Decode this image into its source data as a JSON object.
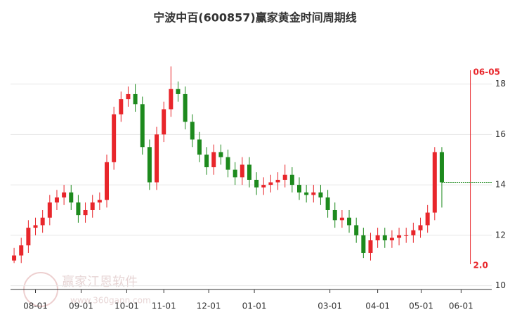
{
  "chart_data": {
    "type": "candlestick",
    "title": "宁波中百(600857)赢家黄金时间周期线",
    "x": [
      0,
      1,
      2,
      3,
      4,
      5,
      6,
      7,
      8,
      9,
      10,
      11,
      12,
      13,
      14,
      15,
      16,
      17,
      18,
      19,
      20,
      21,
      22,
      23,
      24,
      25,
      26,
      27,
      28,
      29,
      30,
      31,
      32,
      33,
      34,
      35,
      36,
      37,
      38,
      39,
      40,
      41,
      42,
      43,
      44,
      45,
      46,
      47,
      48,
      49,
      50,
      51,
      52,
      53,
      54,
      55,
      56,
      57,
      58,
      59,
      60
    ],
    "open": [
      11.0,
      11.2,
      11.6,
      12.3,
      12.4,
      12.7,
      13.3,
      13.5,
      13.7,
      13.3,
      12.8,
      13.0,
      13.3,
      13.4,
      14.9,
      16.8,
      17.4,
      17.6,
      17.2,
      15.5,
      14.1,
      16.0,
      17.0,
      17.8,
      17.6,
      16.5,
      15.8,
      15.2,
      14.7,
      15.3,
      15.1,
      14.6,
      14.3,
      14.8,
      14.2,
      13.9,
      14.0,
      14.1,
      14.2,
      14.4,
      14.0,
      13.7,
      13.6,
      13.7,
      13.5,
      13.0,
      12.6,
      12.7,
      12.4,
      12.0,
      11.3,
      11.8,
      12.0,
      11.8,
      11.9,
      12.0,
      12.0,
      12.2,
      12.4,
      12.9,
      15.3
    ],
    "high": [
      11.5,
      11.9,
      12.6,
      12.7,
      13.0,
      13.6,
      13.8,
      14.0,
      14.0,
      13.6,
      13.3,
      13.6,
      13.7,
      15.2,
      17.1,
      17.7,
      17.9,
      18.0,
      17.5,
      15.8,
      16.3,
      17.3,
      18.7,
      18.1,
      17.9,
      16.8,
      16.1,
      15.5,
      15.6,
      15.6,
      15.4,
      14.9,
      15.1,
      15.1,
      14.5,
      14.3,
      14.4,
      14.5,
      14.8,
      14.7,
      14.3,
      14.0,
      14.0,
      14.0,
      13.8,
      13.3,
      13.0,
      13.0,
      12.7,
      12.3,
      12.1,
      12.3,
      12.3,
      12.2,
      12.3,
      12.3,
      12.5,
      12.7,
      13.2,
      15.5,
      15.5
    ],
    "low": [
      10.9,
      10.9,
      11.3,
      12.0,
      12.1,
      12.4,
      13.0,
      13.2,
      13.0,
      12.5,
      12.5,
      12.7,
      13.0,
      13.1,
      14.6,
      16.5,
      17.1,
      16.9,
      15.2,
      13.8,
      13.8,
      15.7,
      16.7,
      17.3,
      16.2,
      15.5,
      14.9,
      14.4,
      14.4,
      14.8,
      14.3,
      14.0,
      14.0,
      13.9,
      13.6,
      13.6,
      13.7,
      13.8,
      13.9,
      13.7,
      13.4,
      13.3,
      13.3,
      13.2,
      12.7,
      12.3,
      12.3,
      12.1,
      11.7,
      11.1,
      11.0,
      11.5,
      11.5,
      11.5,
      11.6,
      11.7,
      11.7,
      11.9,
      12.1,
      12.6,
      13.1
    ],
    "close": [
      11.2,
      11.6,
      12.3,
      12.4,
      12.7,
      13.3,
      13.5,
      13.7,
      13.3,
      12.8,
      13.0,
      13.3,
      13.4,
      14.9,
      16.8,
      17.4,
      17.6,
      17.2,
      15.5,
      14.1,
      16.0,
      17.0,
      17.8,
      17.6,
      16.5,
      15.8,
      15.2,
      14.7,
      15.3,
      15.1,
      14.6,
      14.3,
      14.8,
      14.2,
      13.9,
      14.0,
      14.1,
      14.2,
      14.4,
      14.0,
      13.7,
      13.6,
      13.7,
      13.5,
      13.0,
      12.6,
      12.7,
      12.4,
      12.0,
      11.3,
      11.8,
      12.0,
      11.8,
      11.9,
      12.0,
      12.0,
      12.2,
      12.4,
      12.9,
      15.3,
      14.1
    ],
    "up_color": "#e8262b",
    "down_color": "#1d8a1d",
    "xlim": [
      -0.5,
      67
    ],
    "ylim": [
      9.85,
      19.8
    ],
    "xticks": [
      {
        "value": 3,
        "label": "08-01"
      },
      {
        "value": 9.4,
        "label": "09-01"
      },
      {
        "value": 15.8,
        "label": "10-01"
      },
      {
        "value": 21,
        "label": "11-01"
      },
      {
        "value": 27.3,
        "label": "12-01"
      },
      {
        "value": 33.7,
        "label": "01-01"
      },
      {
        "value": 44.3,
        "label": "03-01"
      },
      {
        "value": 51,
        "label": "04-01"
      },
      {
        "value": 57.1,
        "label": "05-01"
      },
      {
        "value": 62.7,
        "label": "06-01"
      }
    ],
    "yticks": [
      10,
      12,
      14,
      16,
      18
    ],
    "grid": true,
    "cycle_line": {
      "x": 64,
      "label": "06-05",
      "value_label": "2.0",
      "color": "#e8262b"
    },
    "watermark": {
      "name": "赢家江恩软件",
      "url": "www.360gann.com"
    }
  }
}
